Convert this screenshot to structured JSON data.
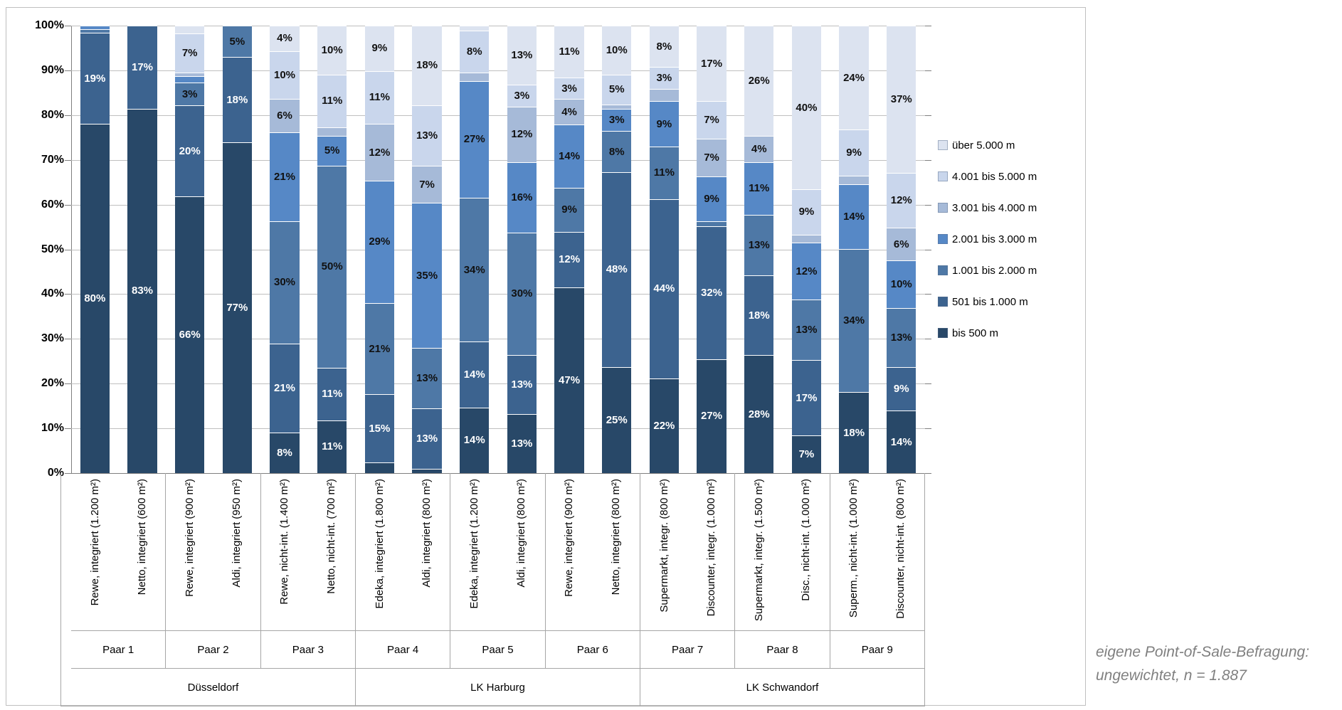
{
  "chart_data": {
    "type": "bar",
    "subtype": "100%-stacked-vertical",
    "title": "",
    "y_axis": {
      "min": 0,
      "max": 100,
      "ticks_top_to_bottom": [
        "100%",
        "90%",
        "80%",
        "70%",
        "60%",
        "50%",
        "40%",
        "30%",
        "20%",
        "10%",
        "0%"
      ],
      "grid": true
    },
    "series_order_bottom_up": [
      "bis 500 m",
      "501 bis 1.000 m",
      "1.001 bis 2.000 m",
      "2.001 bis 3.000 m",
      "3.001 bis 4.000 m",
      "4.001 bis 5.000 m",
      "über 5.000 m"
    ],
    "series_colors_bottom_up": [
      "#284868",
      "#3C638F",
      "#4E78A6",
      "#5688C6",
      "#A6BAD8",
      "#C9D6EC",
      "#DCE3F0"
    ],
    "label_text_colors_bottom_up": [
      "#ffffff",
      "#ffffff",
      "#111111",
      "#111111",
      "#111111",
      "#111111",
      "#111111"
    ],
    "legend": {
      "position": "right",
      "items_top_to_bottom": [
        {
          "label": "über 5.000 m",
          "color": "#DCE3F0"
        },
        {
          "label": "4.001 bis 5.000 m",
          "color": "#C9D6EC"
        },
        {
          "label": "3.001 bis 4.000 m",
          "color": "#A6BAD8"
        },
        {
          "label": "2.001 bis 3.000 m",
          "color": "#5688C6"
        },
        {
          "label": "1.001 bis 2.000 m",
          "color": "#4E78A6"
        },
        {
          "label": "501 bis  1.000 m",
          "color": "#3C638F"
        },
        {
          "label": "bis 500  m",
          "color": "#284868"
        }
      ]
    },
    "bars": [
      {
        "store": "Rewe, integriert (1.200 m²)",
        "pair": "Paar 1",
        "city": "Düsseldorf",
        "values": [
          80,
          19,
          0.7,
          0.7,
          0,
          0,
          0
        ],
        "labels": [
          "80%",
          "19%",
          null,
          null,
          null,
          null,
          null
        ]
      },
      {
        "store": "Netto, integriert (600 m²)",
        "pair": "Paar 1",
        "city": "Düsseldorf",
        "values": [
          83,
          17,
          0,
          0,
          0,
          0,
          0
        ],
        "labels": [
          "83%",
          "17%",
          null,
          null,
          null,
          null,
          null
        ]
      },
      {
        "store": "Rewe, integriert (900 m²)",
        "pair": "Paar 2",
        "city": "Düsseldorf",
        "values": [
          66,
          20,
          3,
          1.5,
          0.7,
          7,
          1.8
        ],
        "labels": [
          "66%",
          "20%",
          "3%",
          null,
          null,
          "7%",
          null
        ]
      },
      {
        "store": "Aldi, integriert (950 m²)",
        "pair": "Paar 2",
        "city": "Düsseldorf",
        "values": [
          77,
          18,
          5,
          0,
          0,
          0,
          0
        ],
        "labels": [
          "77%",
          "18%",
          "5%",
          null,
          null,
          null,
          null
        ]
      },
      {
        "store": "Rewe, nicht-int. (1.400 m²)",
        "pair": "Paar 3",
        "city": "Düsseldorf",
        "values": [
          8,
          21,
          30,
          21,
          6,
          10,
          4
        ],
        "labels": [
          "8%",
          "21%",
          "30%",
          "21%",
          "6%",
          "10%",
          "4%"
        ]
      },
      {
        "store": "Netto, nicht-int. (700 m²)",
        "pair": "Paar 3",
        "city": "Düsseldorf",
        "values": [
          11,
          11,
          50,
          5,
          2,
          11,
          10
        ],
        "labels": [
          "11%",
          "11%",
          "50%",
          "5%",
          null,
          "11%",
          "10%"
        ]
      },
      {
        "store": "Edeka, integriert (1.800 m²)",
        "pair": "Paar 4",
        "city": "LK Harburg",
        "values": [
          2.5,
          15,
          21,
          29,
          12,
          11,
          9
        ],
        "labels": [
          null,
          "15%",
          "21%",
          "29%",
          "12%",
          "11%",
          "9%"
        ]
      },
      {
        "store": "Aldi, integriert (800 m²)",
        "pair": "Paar 4",
        "city": "LK Harburg",
        "values": [
          1,
          13,
          13,
          35,
          7,
          13,
          18
        ],
        "labels": [
          null,
          "13%",
          "13%",
          "35%",
          "7%",
          "13%",
          "18%"
        ]
      },
      {
        "store": "Edeka, integriert (1.200 m²)",
        "pair": "Paar 5",
        "city": "LK Harburg",
        "values": [
          14,
          14,
          34,
          27,
          2,
          8,
          1
        ],
        "labels": [
          "14%",
          "14%",
          "34%",
          "27%",
          null,
          "8%",
          null
        ]
      },
      {
        "store": "Aldi, integriert (800 m²)",
        "pair": "Paar 5",
        "city": "LK Harburg",
        "values": [
          13,
          13,
          30,
          16,
          12,
          3,
          13
        ],
        "labels": [
          "13%",
          "13%",
          "30%",
          "16%",
          "12%",
          "3%",
          "13%"
        ]
      },
      {
        "store": "Rewe, integriert (900 m²)",
        "pair": "Paar 6",
        "city": "LK Harburg",
        "values": [
          47,
          12,
          9,
          14,
          4,
          3,
          11
        ],
        "labels": [
          "47%",
          "12%",
          "9%",
          "14%",
          "4%",
          "3%",
          "11%"
        ]
      },
      {
        "store": "Netto, integriert (800 m²)",
        "pair": "Paar 6",
        "city": "LK Harburg",
        "values": [
          25,
          48,
          8,
          3,
          1,
          5,
          10
        ],
        "labels": [
          "25%",
          "48%",
          "8%",
          "3%",
          null,
          "5%",
          "10%"
        ]
      },
      {
        "store": "Supermarkt, integr. (800 m²)",
        "pair": "Paar 7",
        "city": "LK Schwandorf",
        "values": [
          22,
          44,
          11,
          9,
          3,
          3,
          8
        ],
        "labels": [
          "22%",
          "44%",
          "11%",
          "9%",
          null,
          "3%",
          "8%"
        ]
      },
      {
        "store": "Discounter, integr. (1.000 m²)",
        "pair": "Paar 7",
        "city": "LK Schwandorf",
        "values": [
          27,
          32,
          1,
          9,
          7,
          7,
          17
        ],
        "labels": [
          "27%",
          "32%",
          null,
          "9%",
          "7%",
          "7%",
          "17%"
        ]
      },
      {
        "store": "Supermarkt, integr. (1.500 m²)",
        "pair": "Paar 8",
        "city": "LK Schwandorf",
        "values": [
          28,
          18,
          13,
          11,
          4,
          0,
          26
        ],
        "labels": [
          "28%",
          "18%",
          "13%",
          "11%",
          "4%",
          null,
          "26%"
        ]
      },
      {
        "store": "Disc., nicht-int. (1.000 m²)",
        "pair": "Paar 8",
        "city": "LK Schwandorf",
        "values": [
          7,
          17,
          13,
          12,
          2,
          9,
          40
        ],
        "labels": [
          "7%",
          "17%",
          "13%",
          "12%",
          null,
          "9%",
          "40%"
        ]
      },
      {
        "store": "Superm., nicht-int. (1.000 m²)",
        "pair": "Paar 9",
        "city": "LK Schwandorf",
        "values": [
          18,
          0,
          34,
          14,
          2,
          9,
          24
        ],
        "labels": [
          "18%",
          null,
          "34%",
          "14%",
          null,
          "9%",
          "24%"
        ]
      },
      {
        "store": "Discounter, nicht-int. (800 m²)",
        "pair": "Paar 9",
        "city": "LK Schwandorf",
        "values": [
          14,
          9,
          13,
          10,
          6,
          12,
          37
        ],
        "labels": [
          "14%",
          "9%",
          "13%",
          "10%",
          "6%",
          "12%",
          "37%"
        ]
      }
    ],
    "pairs": [
      "Paar 1",
      "Paar 2",
      "Paar 3",
      "Paar 4",
      "Paar 5",
      "Paar 6",
      "Paar 7",
      "Paar 8",
      "Paar 9"
    ],
    "cities": [
      {
        "label": "Düsseldorf",
        "pair_count": 3
      },
      {
        "label": "LK Harburg",
        "pair_count": 3
      },
      {
        "label": "LK Schwandorf",
        "pair_count": 3
      }
    ]
  },
  "footnote": {
    "line1": "eigene Point-of-Sale-Befragung:",
    "line2": "ungewichtet, n = 1.887"
  }
}
